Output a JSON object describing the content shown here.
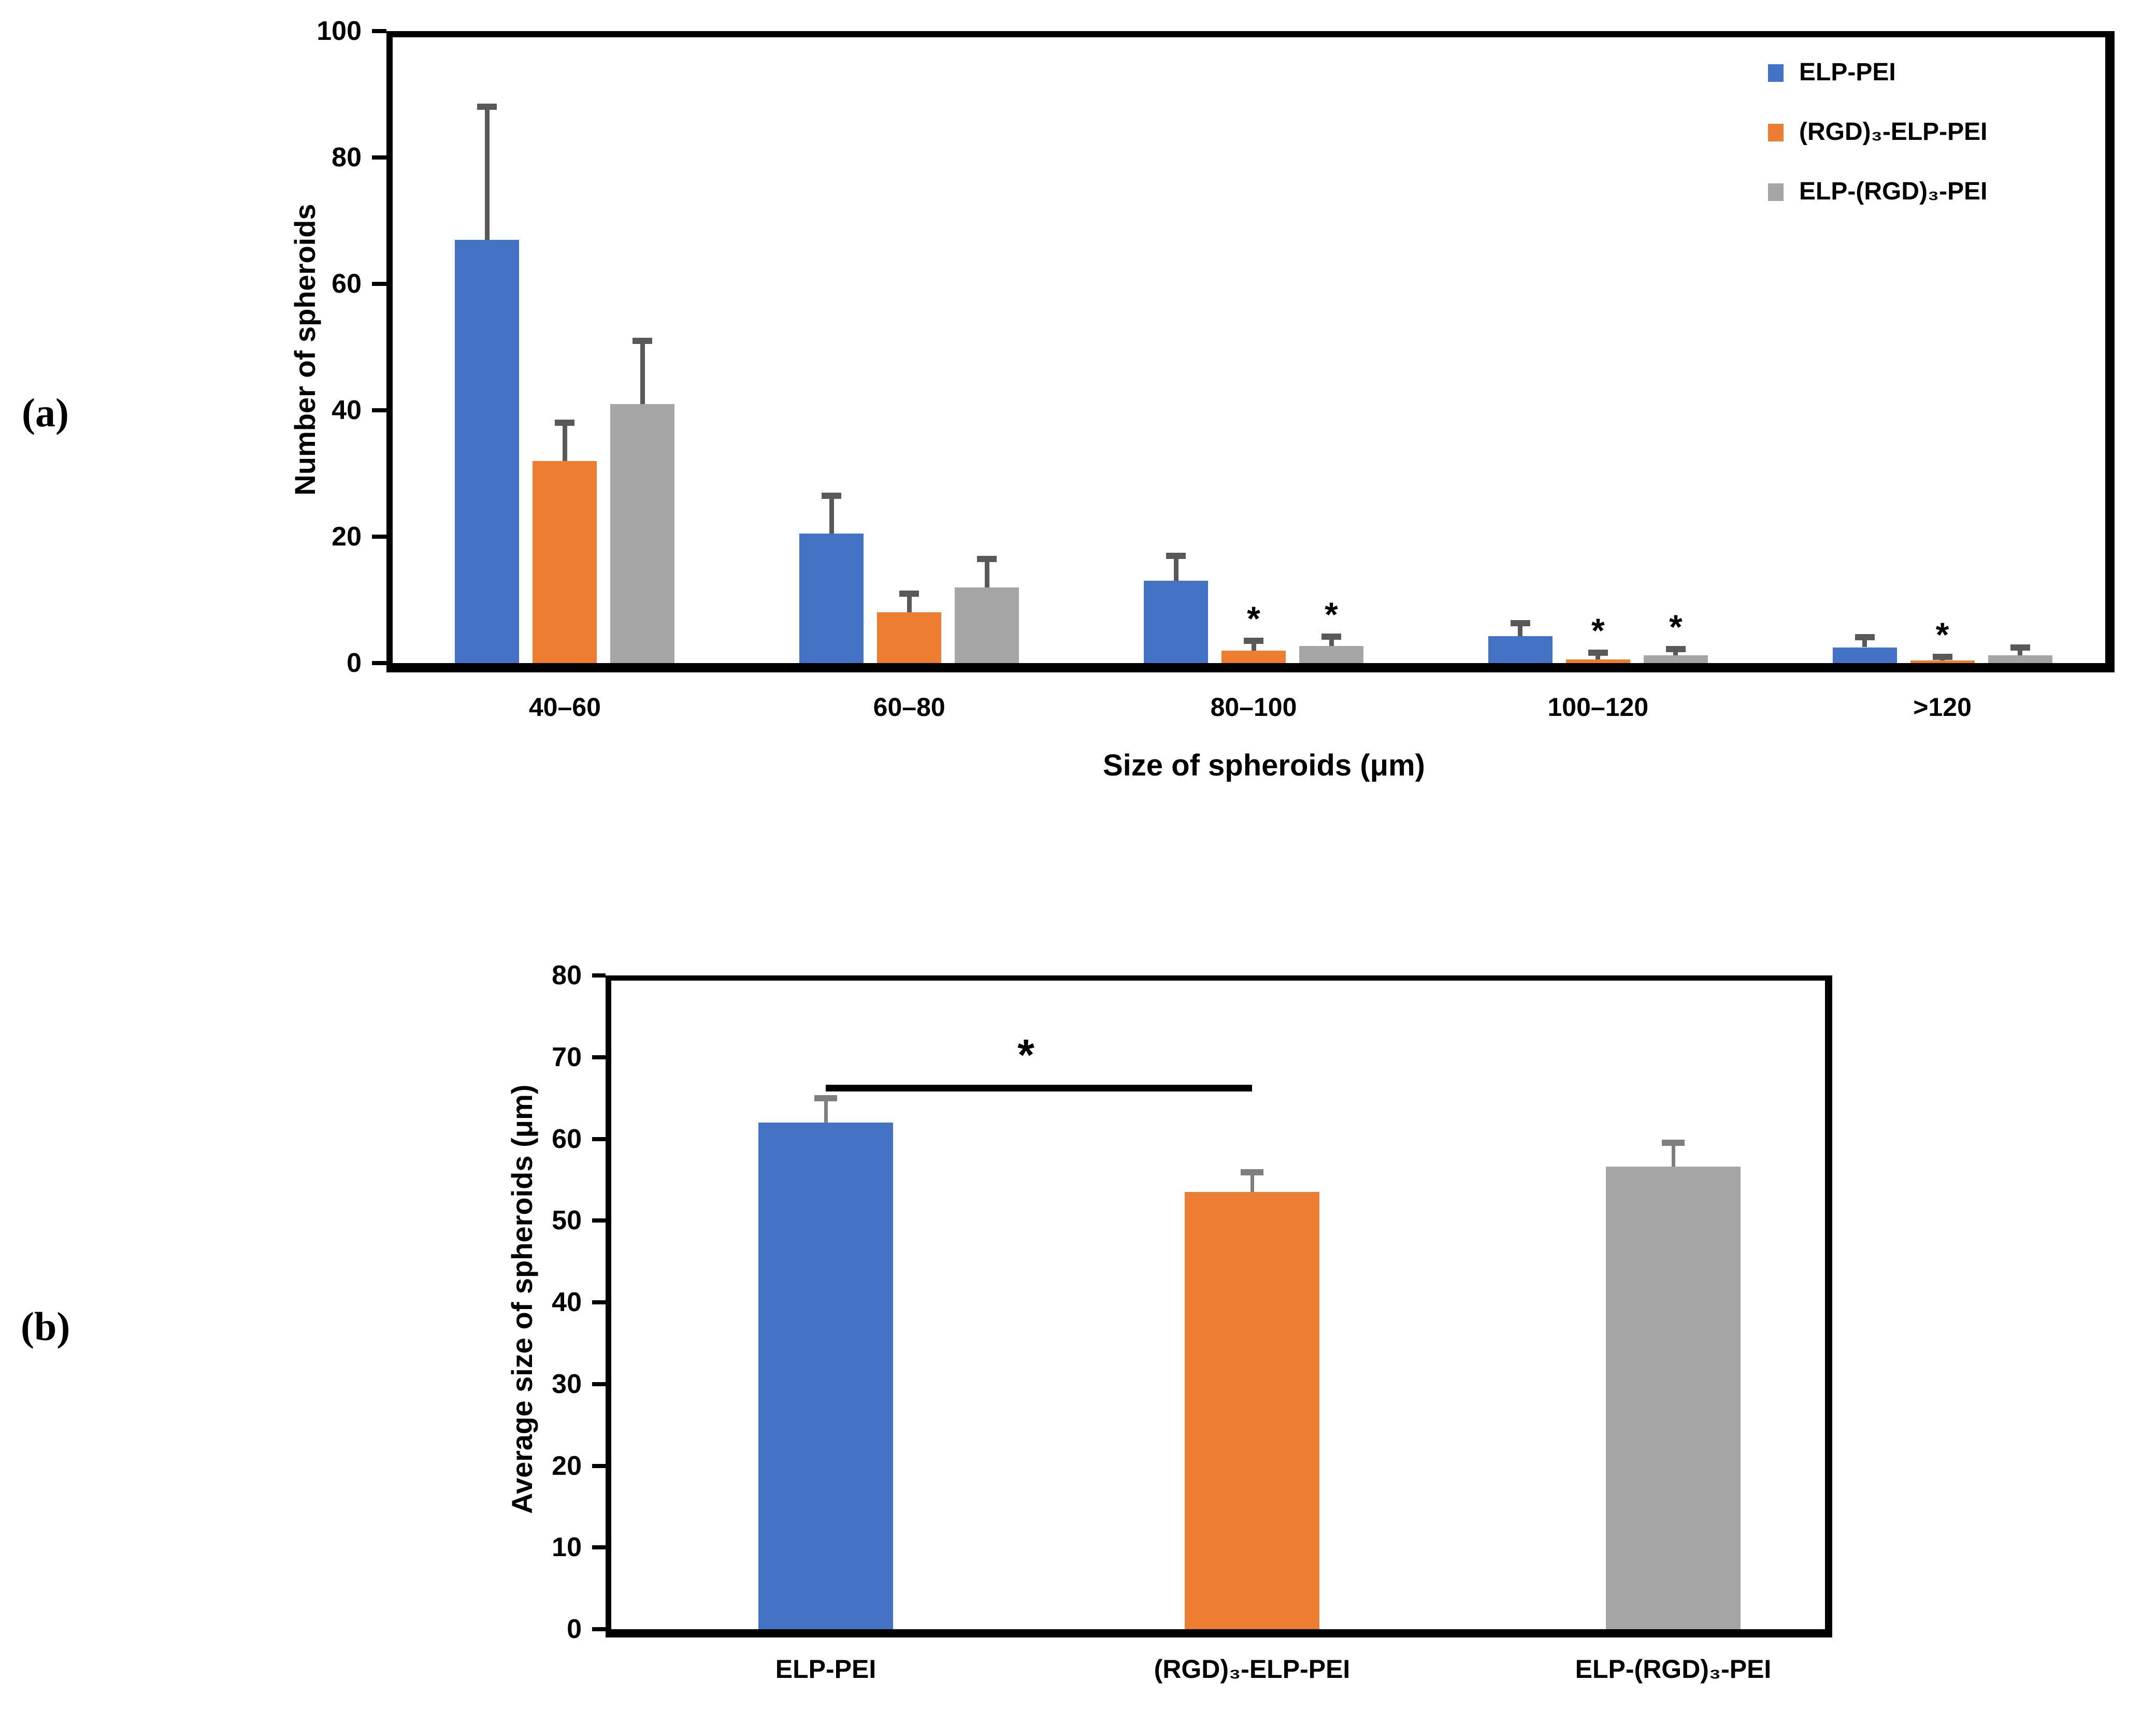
{
  "panels": {
    "a": {
      "letter": "(a)"
    },
    "b": {
      "letter": "(b)"
    }
  },
  "colors": {
    "series_blue": "#4472C4",
    "series_orange": "#ED7D31",
    "series_gray": "#A5A5A5",
    "error_bar_a": "#595959",
    "error_bar_b": "#7F7F7F",
    "axis": "#000000",
    "background": "#FFFFFF"
  },
  "chart_data": [
    {
      "id": "a",
      "type": "bar",
      "title": "",
      "xlabel": "Size of spheroids (μm)",
      "ylabel": "Number of spheroids",
      "ylim": [
        0,
        100
      ],
      "ytick_step": 20,
      "grid": false,
      "legend_position": "top-right-inside",
      "categories": [
        "40–60",
        "60–80",
        "80–100",
        "100–120",
        ">120"
      ],
      "series": [
        {
          "name": "ELP-PEI",
          "color": "#4472C4",
          "values": [
            67,
            20.5,
            13,
            4.3,
            2.5
          ],
          "errors_plus": [
            21,
            6,
            4,
            2,
            1.6
          ],
          "sig_marks": [
            false,
            false,
            false,
            false,
            false
          ]
        },
        {
          "name": "(RGD)₃-ELP-PEI",
          "color": "#ED7D31",
          "values": [
            32,
            8,
            2,
            0.6,
            0.4
          ],
          "errors_plus": [
            6,
            3,
            1.5,
            1,
            0.6
          ],
          "sig_marks": [
            false,
            false,
            true,
            true,
            true
          ]
        },
        {
          "name": "ELP-(RGD)₃-PEI",
          "color": "#A5A5A5",
          "values": [
            41,
            12,
            2.7,
            1.2,
            1.2
          ],
          "errors_plus": [
            10,
            4.5,
            1.5,
            1,
            1.3
          ],
          "sig_marks": [
            false,
            false,
            true,
            true,
            false
          ]
        }
      ]
    },
    {
      "id": "b",
      "type": "bar",
      "title": "",
      "xlabel": "",
      "ylabel": "Average size of spheroids (μm)",
      "ylim": [
        0,
        80
      ],
      "ytick_step": 10,
      "grid": false,
      "categories": [
        "ELP-PEI",
        "(RGD)₃-ELP-PEI",
        "ELP-(RGD)₃-PEI"
      ],
      "series": [
        {
          "name": "Average size of spheroids",
          "colors": [
            "#4472C4",
            "#ED7D31",
            "#A5A5A5"
          ],
          "values": [
            62,
            53.5,
            56.6
          ],
          "errors_plus": [
            3,
            2.4,
            2.9
          ]
        }
      ],
      "significance": {
        "pair": [
          0,
          1
        ],
        "y_value": 66.6,
        "marker": "*"
      }
    }
  ]
}
